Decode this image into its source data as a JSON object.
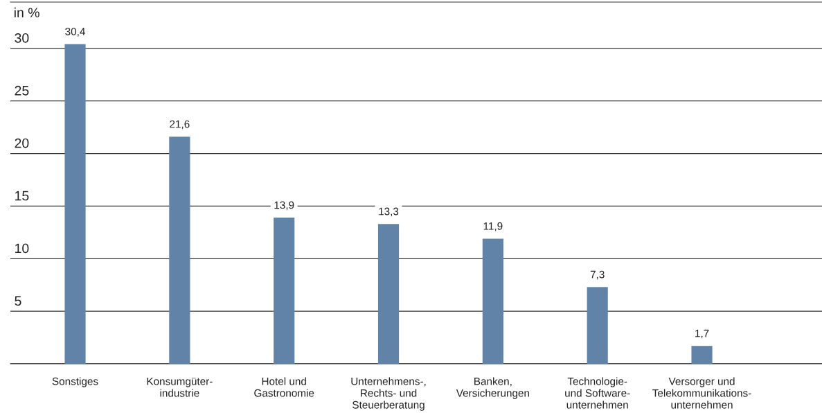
{
  "chart_data": {
    "type": "bar",
    "ylabel": "in %",
    "categories": [
      "Sonstiges",
      "Konsumgüter-\nindustrie",
      "Hotel und\nGastronomie",
      "Unternehmens-,\nRechts- und\nSteuerberatung",
      "Banken,\nVersicherungen",
      "Technologie-\nund Software-\nunternehmen",
      "Versorger und\nTelekommunikations-\nunternehmen"
    ],
    "values": [
      30.4,
      21.6,
      13.9,
      13.3,
      11.9,
      7.3,
      1.7
    ],
    "value_labels": [
      "30,4",
      "21,6",
      "13,9",
      "13,3",
      "11,9",
      "7,3",
      "1,7"
    ],
    "color": "#6283a8",
    "ylim": [
      0,
      34.4
    ],
    "yticks": [
      {
        "value": 0,
        "label": null
      },
      5,
      10,
      15,
      20,
      25,
      30
    ],
    "grid": "y",
    "legend": false
  }
}
